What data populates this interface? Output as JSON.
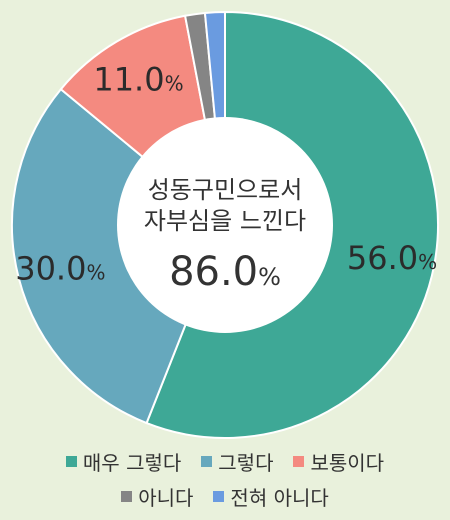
{
  "chart_data": {
    "type": "pie",
    "donut": true,
    "start": "top",
    "direction": "clockwise",
    "categories": [
      "매우 그렇다",
      "그렇다",
      "보통이다",
      "아니다",
      "전혀 아니다"
    ],
    "values": [
      56.0,
      30.0,
      11.0,
      1.5,
      1.5
    ],
    "labels": [
      "56.0",
      "30.0",
      "11.0",
      "",
      ""
    ],
    "unit": "%",
    "colors": [
      "#3ea896",
      "#66a8bd",
      "#f48a80",
      "#858585",
      "#6a9be0"
    ],
    "center_line1": "성동구민으로서",
    "center_line2": "자부심을 느낀다",
    "center_value": "86.0",
    "center_unit": "%",
    "legend_position": "bottom"
  }
}
